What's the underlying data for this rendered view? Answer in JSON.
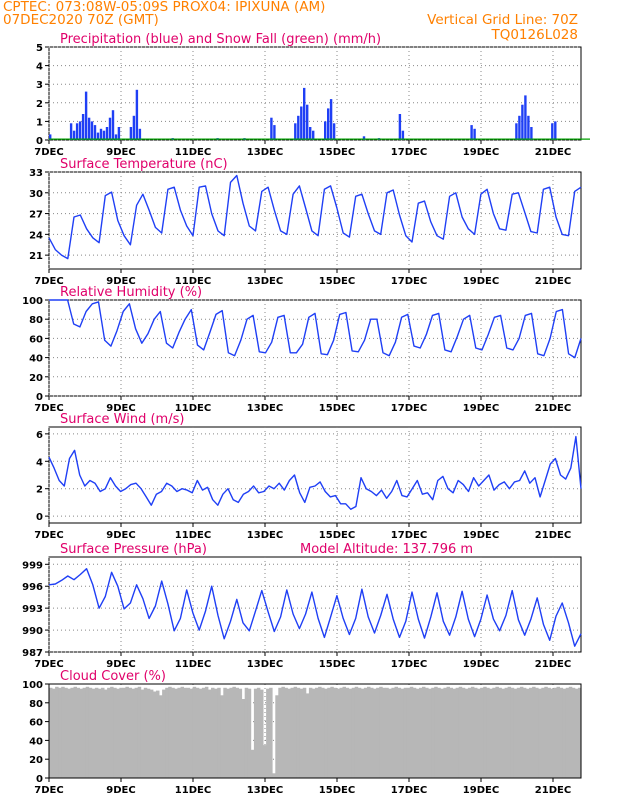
{
  "header": {
    "line1_left": "CPTEC:   073:08W-05:09S   PROX04: IPIXUNA (AM)",
    "line2_left": "07DEC2020 70Z (GMT)",
    "line2_right": "Vertical Grid Line: 70Z",
    "line3_right": "TQ0126L028"
  },
  "colors": {
    "header": "#ff8000",
    "title": "#e0006a",
    "line": "#1f3ff5",
    "precip": "#1f3ff5",
    "snow": "#00a000",
    "cloud": "#b7b7b7"
  },
  "chart_data": [
    {
      "type": "bar",
      "title": "Precipitation (blue) and Snow Fall (green) (mm/h)",
      "x_ticks": [
        "7DEC",
        "9DEC",
        "11DEC",
        "13DEC",
        "15DEC",
        "17DEC",
        "19DEC",
        "21DEC"
      ],
      "y_ticks": [
        "5",
        "4",
        "3",
        "2",
        "1",
        "0"
      ],
      "ylim": [
        0,
        5
      ],
      "grid": true,
      "series": [
        {
          "values": [
            0.3,
            0,
            0,
            0,
            0,
            0,
            0,
            0.9,
            0.5,
            0.9,
            1.0,
            1.4,
            2.6,
            1.2,
            1.0,
            0.8,
            0.4,
            0.6,
            0.5,
            0.7,
            1.2,
            1.6,
            0.3,
            0.7,
            0,
            0,
            0,
            0.7,
            1.3,
            2.7,
            0.6,
            0,
            0,
            0,
            0,
            0,
            0,
            0,
            0,
            0,
            0,
            0.1,
            0,
            0,
            0,
            0,
            0,
            0,
            0,
            0,
            0,
            0,
            0,
            0,
            0,
            0,
            0.1,
            0,
            0,
            0,
            0,
            0,
            0,
            0,
            0,
            0.1,
            0,
            0,
            0,
            0,
            0,
            0,
            0,
            0,
            1.2,
            0.8,
            0,
            0,
            0,
            0,
            0,
            0,
            0.9,
            1.3,
            1.8,
            2.8,
            1.9,
            0.7,
            0.5,
            0,
            0,
            0,
            1.0,
            1.7,
            2.2,
            0.9,
            0,
            0,
            0,
            0,
            0,
            0,
            0,
            0,
            0,
            0.2,
            0,
            0,
            0,
            0,
            0.1,
            0,
            0,
            0,
            0,
            0,
            0,
            1.4,
            0.5,
            0,
            0,
            0,
            0,
            0,
            0,
            0,
            0,
            0,
            0,
            0,
            0,
            0,
            0,
            0,
            0,
            0,
            0,
            0,
            0,
            0,
            0,
            0.8,
            0.6,
            0,
            0,
            0,
            0,
            0,
            0,
            0,
            0,
            0,
            0,
            0,
            0,
            0,
            0.9,
            1.3,
            1.9,
            2.4,
            1.3,
            0.7,
            0,
            0,
            0,
            0,
            0,
            0,
            0.9,
            1.0,
            0,
            0,
            0,
            0,
            0,
            0,
            0,
            0
          ]
        },
        {
          "values": [
            0.05,
            0.05,
            0.05,
            0.05,
            0.05,
            0.05,
            0.05,
            0.05,
            0.05,
            0.05,
            0.05,
            0.05,
            0.05,
            0.05,
            0.05,
            0.05,
            0.05,
            0.05,
            0.05,
            0.05,
            0.05,
            0.05,
            0.05,
            0.05,
            0.05,
            0.05,
            0.05,
            0.05,
            0.05,
            0.05,
            0.05,
            0.05,
            0.05,
            0.05,
            0.05,
            0.05,
            0.05,
            0.05,
            0.05,
            0.05,
            0.05,
            0.05,
            0.05,
            0.05,
            0.05,
            0.05,
            0.05,
            0.05,
            0.05,
            0.05,
            0.05,
            0.05,
            0.05,
            0.05,
            0.05,
            0.05,
            0.05,
            0.05,
            0.05,
            0.05,
            0.05,
            0.05,
            0.05,
            0.05,
            0.05,
            0.05,
            0.05,
            0.05,
            0.05,
            0.05,
            0.05,
            0.05,
            0.05,
            0.05,
            0.05,
            0.05,
            0.05,
            0.05,
            0.05,
            0.05,
            0.05,
            0.05,
            0.05,
            0.05,
            0.05,
            0.05,
            0.05,
            0.05,
            0.05,
            0.05,
            0.05,
            0.05,
            0.05,
            0.05,
            0.05,
            0.05,
            0.05,
            0.05,
            0.05,
            0.05,
            0.05,
            0.05,
            0.05,
            0.05,
            0.05,
            0.05,
            0.05,
            0.05,
            0.05,
            0.05,
            0.05,
            0.05,
            0.05,
            0.05,
            0.05,
            0.05,
            0.05,
            0.05,
            0.05,
            0.05,
            0.05,
            0.05,
            0.05,
            0.05,
            0.05,
            0.05,
            0.05,
            0.05,
            0.05,
            0.05,
            0.05,
            0.05,
            0.05,
            0.05,
            0.05,
            0.05,
            0.05,
            0.05,
            0.05,
            0.05,
            0.05,
            0.05,
            0.05,
            0.05,
            0.05,
            0.05,
            0.05,
            0.05,
            0.05,
            0.05,
            0.05,
            0.05,
            0.05,
            0.05,
            0.05,
            0.05,
            0.05,
            0.05,
            0.05,
            0.05,
            0.05,
            0.05,
            0.05,
            0.05,
            0.05,
            0.05,
            0.05,
            0.05,
            0.05,
            0.05,
            0.05,
            0.05,
            0.05,
            0.05,
            0.05,
            0.05,
            0.05,
            0.05,
            0.05,
            0.05,
            0.05,
            0.05
          ]
        }
      ]
    },
    {
      "type": "line",
      "title": "Surface Temperature (nC)",
      "x_ticks": [
        "7DEC",
        "9DEC",
        "11DEC",
        "13DEC",
        "15DEC",
        "17DEC",
        "19DEC",
        "21DEC"
      ],
      "y_ticks": [
        "33",
        "30",
        "27",
        "24",
        "21"
      ],
      "ylim": [
        19,
        33
      ],
      "grid": true,
      "series": [
        {
          "values": [
            23.5,
            21.8,
            21.0,
            20.5,
            26.5,
            26.8,
            24.8,
            23.5,
            22.8,
            29.6,
            30.1,
            26.0,
            23.8,
            22.5,
            28.2,
            29.8,
            27.5,
            25.0,
            24.2,
            30.5,
            30.8,
            27.5,
            25.2,
            23.8,
            30.8,
            31.0,
            27.0,
            24.5,
            23.8,
            31.5,
            32.5,
            28.5,
            25.2,
            24.5,
            30.2,
            30.8,
            27.5,
            24.5,
            24.0,
            29.8,
            31.0,
            27.8,
            24.5,
            23.8,
            30.5,
            31.0,
            27.8,
            24.2,
            23.6,
            29.5,
            29.8,
            27.0,
            24.5,
            24.0,
            30.0,
            30.4,
            26.8,
            23.8,
            22.9,
            28.5,
            28.8,
            25.8,
            23.8,
            23.3,
            29.5,
            30.0,
            26.5,
            24.8,
            24.0,
            29.8,
            30.5,
            27.0,
            24.8,
            24.6,
            29.8,
            30.0,
            27.2,
            24.4,
            24.2,
            30.5,
            30.8,
            26.5,
            24.0,
            23.8,
            30.2,
            30.8
          ]
        }
      ]
    },
    {
      "type": "line",
      "title": "Relative Humidity (%)",
      "x_ticks": [
        "7DEC",
        "9DEC",
        "11DEC",
        "13DEC",
        "15DEC",
        "17DEC",
        "19DEC",
        "21DEC"
      ],
      "y_ticks": [
        "100",
        "80",
        "60",
        "40",
        "20",
        "0"
      ],
      "ylim": [
        0,
        100
      ],
      "grid": true,
      "series": [
        {
          "values": [
            100,
            100,
            100,
            100,
            75,
            72,
            88,
            96,
            98,
            58,
            52,
            68,
            88,
            96,
            70,
            55,
            65,
            80,
            88,
            55,
            50,
            66,
            80,
            90,
            53,
            48,
            66,
            85,
            89,
            45,
            42,
            58,
            80,
            84,
            46,
            45,
            56,
            82,
            84,
            45,
            45,
            54,
            82,
            86,
            44,
            43,
            58,
            85,
            87,
            47,
            46,
            58,
            80,
            80,
            45,
            42,
            56,
            82,
            85,
            52,
            50,
            64,
            84,
            86,
            48,
            46,
            62,
            80,
            84,
            50,
            48,
            64,
            82,
            84,
            50,
            48,
            60,
            84,
            86,
            44,
            42,
            60,
            88,
            90,
            44,
            40,
            60
          ]
        }
      ]
    },
    {
      "type": "line",
      "title": "Surface Wind (m/s)",
      "x_ticks": [
        "7DEC",
        "9DEC",
        "11DEC",
        "13DEC",
        "15DEC",
        "17DEC",
        "19DEC",
        "21DEC"
      ],
      "y_ticks": [
        "6",
        "4",
        "2",
        "0"
      ],
      "ylim": [
        -0.5,
        6.5
      ],
      "grid": true,
      "series": [
        {
          "values": [
            4.3,
            3.5,
            2.6,
            2.2,
            4.2,
            4.8,
            3.0,
            2.2,
            2.6,
            2.4,
            1.8,
            2.0,
            2.8,
            2.2,
            1.8,
            2.0,
            2.3,
            2.4,
            2.0,
            1.4,
            0.8,
            1.6,
            1.8,
            2.4,
            2.2,
            1.8,
            2.0,
            1.9,
            1.7,
            2.6,
            1.9,
            2.1,
            1.2,
            0.8,
            1.6,
            2.0,
            1.2,
            1.0,
            1.6,
            1.8,
            2.2,
            1.7,
            1.8,
            2.2,
            2.0,
            2.4,
            1.9,
            2.6,
            3.0,
            1.7,
            1.0,
            2.1,
            2.2,
            2.5,
            1.8,
            1.4,
            1.5,
            0.9,
            0.9,
            0.5,
            0.7,
            2.8,
            2.0,
            1.8,
            1.5,
            1.9,
            1.3,
            1.8,
            2.6,
            1.5,
            1.4,
            2.0,
            2.6,
            1.6,
            1.7,
            1.2,
            2.6,
            2.9,
            2.0,
            1.7,
            2.6,
            2.3,
            1.8,
            2.8,
            2.2,
            2.6,
            3.0,
            1.9,
            2.3,
            2.5,
            2.0,
            2.5,
            2.6,
            3.3,
            2.4,
            2.8,
            1.4,
            2.6,
            3.8,
            4.2,
            3.0,
            2.7,
            3.5,
            5.8,
            2.0
          ]
        }
      ]
    },
    {
      "type": "line",
      "title": "Surface Pressure (hPa)",
      "annotation": "Model Altitude: 137.796 m",
      "x_ticks": [
        "7DEC",
        "9DEC",
        "11DEC",
        "13DEC",
        "15DEC",
        "17DEC",
        "19DEC",
        "21DEC"
      ],
      "y_ticks": [
        "999",
        "996",
        "993",
        "990",
        "987"
      ],
      "ylim": [
        987,
        1000
      ],
      "grid": true,
      "series": [
        {
          "values": [
            996.2,
            996.3,
            996.8,
            997.4,
            996.9,
            997.6,
            998.4,
            996.2,
            993.0,
            994.6,
            997.9,
            996.0,
            992.9,
            993.7,
            996.2,
            994.3,
            991.6,
            993.3,
            996.7,
            993.6,
            989.9,
            991.6,
            995.5,
            992.3,
            990.0,
            992.6,
            996.0,
            992.0,
            988.8,
            991.2,
            994.2,
            991.0,
            989.9,
            992.6,
            995.4,
            992.5,
            989.8,
            991.8,
            995.5,
            992.2,
            990.2,
            992.2,
            995.2,
            991.6,
            989.0,
            991.8,
            994.7,
            991.6,
            989.4,
            991.6,
            995.6,
            991.8,
            989.6,
            992.0,
            994.9,
            991.5,
            989.0,
            991.2,
            995.2,
            991.5,
            988.9,
            991.8,
            995.1,
            991.2,
            989.3,
            991.8,
            995.3,
            991.5,
            989.1,
            991.5,
            994.8,
            991.5,
            989.9,
            992.0,
            995.4,
            991.4,
            989.3,
            991.5,
            994.4,
            990.8,
            988.6,
            991.9,
            993.7,
            991.0,
            987.8,
            989.5
          ]
        }
      ]
    },
    {
      "type": "bar",
      "title": "Cloud Cover (%)",
      "x_ticks": [
        "7DEC",
        "9DEC",
        "11DEC",
        "13DEC",
        "15DEC",
        "17DEC",
        "19DEC",
        "21DEC"
      ],
      "y_ticks": [
        "100",
        "80",
        "60",
        "40",
        "20",
        "0"
      ],
      "ylim": [
        0,
        100
      ],
      "grid": true,
      "series": [
        {
          "values": [
            96,
            95,
            97,
            96,
            97,
            96,
            95,
            96,
            97,
            96,
            95,
            96,
            97,
            96,
            95,
            96,
            95,
            96,
            94,
            96,
            97,
            96,
            95,
            96,
            96,
            97,
            96,
            95,
            96,
            97,
            94,
            96,
            95,
            94,
            92,
            93,
            88,
            94,
            96,
            97,
            96,
            95,
            96,
            97,
            96,
            96,
            95,
            97,
            96,
            95,
            96,
            97,
            94,
            96,
            95,
            96,
            88,
            96,
            95,
            96,
            97,
            96,
            95,
            84,
            96,
            95,
            30,
            95,
            96,
            94,
            35,
            95,
            96,
            5,
            88,
            96,
            97,
            96,
            95,
            96,
            97,
            96,
            95,
            96,
            90,
            96,
            95,
            96,
            97,
            96,
            95,
            96,
            97,
            96,
            95,
            96,
            97,
            96,
            95,
            96,
            97,
            96,
            95,
            96,
            97,
            96,
            95,
            96,
            97,
            96,
            96,
            95,
            96,
            97,
            96,
            95,
            96,
            96,
            97,
            96,
            95,
            96,
            97,
            96,
            95,
            96,
            97,
            96,
            95,
            96,
            97,
            96,
            95,
            96,
            97,
            96,
            95,
            96,
            97,
            96,
            95,
            96,
            97,
            96,
            95,
            96,
            97,
            96,
            95,
            96,
            97,
            96,
            95,
            96,
            97,
            96,
            95,
            96,
            97,
            96,
            95,
            96,
            97,
            96,
            95,
            96,
            97,
            96,
            95,
            96,
            97,
            96,
            95,
            96
          ]
        }
      ]
    }
  ]
}
